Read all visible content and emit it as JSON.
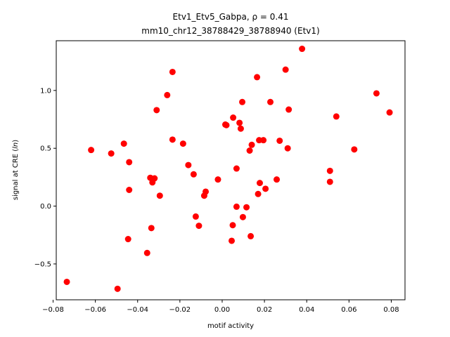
{
  "chart_data": {
    "type": "scatter",
    "title_line1": "Etv1_Etv5_Gabpa, ρ = 0.41",
    "title_line2": "mm10_chr12_38788429_38788940 (Etv1)",
    "xlabel": "motif activity",
    "ylabel": "signal at CRE (ln)",
    "xlim": [
      -0.0785,
      0.0865
    ],
    "ylim": [
      -0.81,
      1.43
    ],
    "xticks": [
      -0.08,
      -0.06,
      -0.04,
      -0.02,
      0.0,
      0.02,
      0.04,
      0.06,
      0.08
    ],
    "xtick_labels": [
      "−0.08",
      "−0.06",
      "−0.04",
      "−0.02",
      "0.00",
      "0.02",
      "0.04",
      "0.06",
      "0.08"
    ],
    "yticks": [
      -0.5,
      0.0,
      0.5,
      1.0
    ],
    "ytick_labels": [
      "−0.5",
      "0.0",
      "0.5",
      "1.0"
    ],
    "marker_color": "#ff0000",
    "grid": false,
    "points": [
      [
        -0.0735,
        -0.655
      ],
      [
        -0.0495,
        -0.715
      ],
      [
        -0.062,
        0.485
      ],
      [
        -0.0525,
        0.455
      ],
      [
        -0.0465,
        0.54
      ],
      [
        -0.044,
        0.38
      ],
      [
        -0.044,
        0.14
      ],
      [
        -0.0445,
        -0.285
      ],
      [
        -0.0355,
        -0.405
      ],
      [
        -0.0335,
        -0.19
      ],
      [
        -0.034,
        0.245
      ],
      [
        -0.033,
        0.205
      ],
      [
        -0.032,
        0.24
      ],
      [
        -0.0295,
        0.09
      ],
      [
        -0.031,
        0.83
      ],
      [
        -0.026,
        0.96
      ],
      [
        -0.0235,
        1.16
      ],
      [
        -0.0235,
        0.575
      ],
      [
        -0.0185,
        0.54
      ],
      [
        -0.016,
        0.355
      ],
      [
        -0.0135,
        0.275
      ],
      [
        -0.0125,
        -0.09
      ],
      [
        -0.011,
        -0.17
      ],
      [
        -0.0085,
        0.09
      ],
      [
        -0.0078,
        0.125
      ],
      [
        -0.002,
        0.23
      ],
      [
        0.0015,
        0.705
      ],
      [
        0.002,
        0.7
      ],
      [
        0.0045,
        -0.3
      ],
      [
        0.005,
        -0.165
      ],
      [
        0.0052,
        0.765
      ],
      [
        0.0068,
        0.325
      ],
      [
        0.0068,
        -0.005
      ],
      [
        0.0082,
        0.72
      ],
      [
        0.0088,
        0.67
      ],
      [
        0.0095,
        0.9
      ],
      [
        0.0098,
        -0.095
      ],
      [
        0.0115,
        -0.01
      ],
      [
        0.013,
        0.48
      ],
      [
        0.0135,
        -0.26
      ],
      [
        0.014,
        0.53
      ],
      [
        0.0165,
        1.115
      ],
      [
        0.017,
        0.105
      ],
      [
        0.0175,
        0.57
      ],
      [
        0.0178,
        0.2
      ],
      [
        0.0195,
        0.57
      ],
      [
        0.0205,
        0.15
      ],
      [
        0.0228,
        0.9
      ],
      [
        0.0258,
        0.23
      ],
      [
        0.0272,
        0.565
      ],
      [
        0.03,
        1.18
      ],
      [
        0.031,
        0.5
      ],
      [
        0.0315,
        0.835
      ],
      [
        0.0378,
        1.36
      ],
      [
        0.051,
        0.305
      ],
      [
        0.051,
        0.21
      ],
      [
        0.054,
        0.775
      ],
      [
        0.0625,
        0.49
      ],
      [
        0.073,
        0.975
      ],
      [
        0.0792,
        0.81
      ]
    ]
  }
}
